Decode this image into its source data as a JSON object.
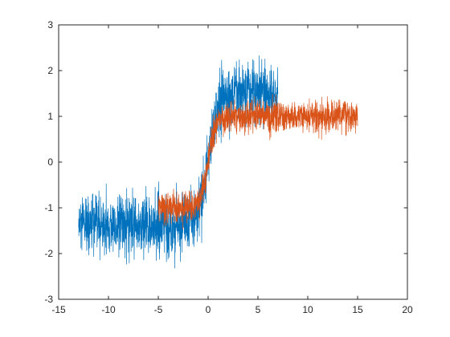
{
  "chart_data": {
    "type": "line",
    "title": "",
    "xlabel": "",
    "ylabel": "",
    "xlim": [
      -15,
      20
    ],
    "ylim": [
      -3,
      3
    ],
    "grid": false,
    "x_ticks": [
      -15,
      -10,
      -5,
      0,
      5,
      10,
      15,
      20
    ],
    "y_ticks": [
      -3,
      -2,
      -1,
      0,
      1,
      2,
      3
    ],
    "x_tick_labels": [
      "-15",
      "-10",
      "-5",
      "0",
      "5",
      "10",
      "15",
      "20"
    ],
    "y_tick_labels": [
      "-3",
      "-2",
      "-1",
      "0",
      "1",
      "2",
      "3"
    ],
    "series": [
      {
        "color": "#0072BD",
        "x_range": [
          -13,
          7
        ],
        "noise_sd": 0.32,
        "shape": "tanh_step",
        "low_level": -1.4,
        "high_level": 1.5,
        "center": 0,
        "width": 1.0
      },
      {
        "color": "#D95319",
        "x_range": [
          -5,
          15
        ],
        "noise_sd": 0.17,
        "shape": "tanh_step",
        "low_level": -1.0,
        "high_level": 1.0,
        "center": 0,
        "width": 0.8
      }
    ]
  }
}
